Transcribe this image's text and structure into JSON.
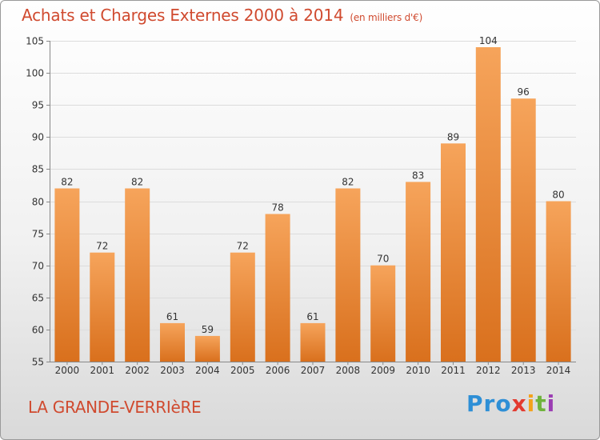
{
  "header": {
    "title": "Achats et Charges Externes 2000 à 2014",
    "subtitle": "(en milliers d'€)"
  },
  "footer": {
    "place": "LA GRANDE-VERRIèRE",
    "logo": [
      "Pro",
      "x",
      "i",
      "t",
      "i"
    ]
  },
  "colors": {
    "bar_top": "#f6a45b",
    "bar_bottom": "#d9701d",
    "title": "#d04a2f"
  },
  "chart_data": {
    "type": "bar",
    "title": "Achats et Charges Externes 2000 à 2014",
    "subtitle": "(en milliers d'€)",
    "categories": [
      "2000",
      "2001",
      "2002",
      "2003",
      "2004",
      "2005",
      "2006",
      "2007",
      "2008",
      "2009",
      "2010",
      "2011",
      "2012",
      "2013",
      "2014"
    ],
    "values": [
      82,
      72,
      82,
      61,
      59,
      72,
      78,
      61,
      82,
      70,
      83,
      89,
      104,
      96,
      80
    ],
    "ylim": [
      55,
      105
    ],
    "yticks": [
      55,
      60,
      65,
      70,
      75,
      80,
      85,
      90,
      95,
      100,
      105
    ],
    "grid": true
  }
}
